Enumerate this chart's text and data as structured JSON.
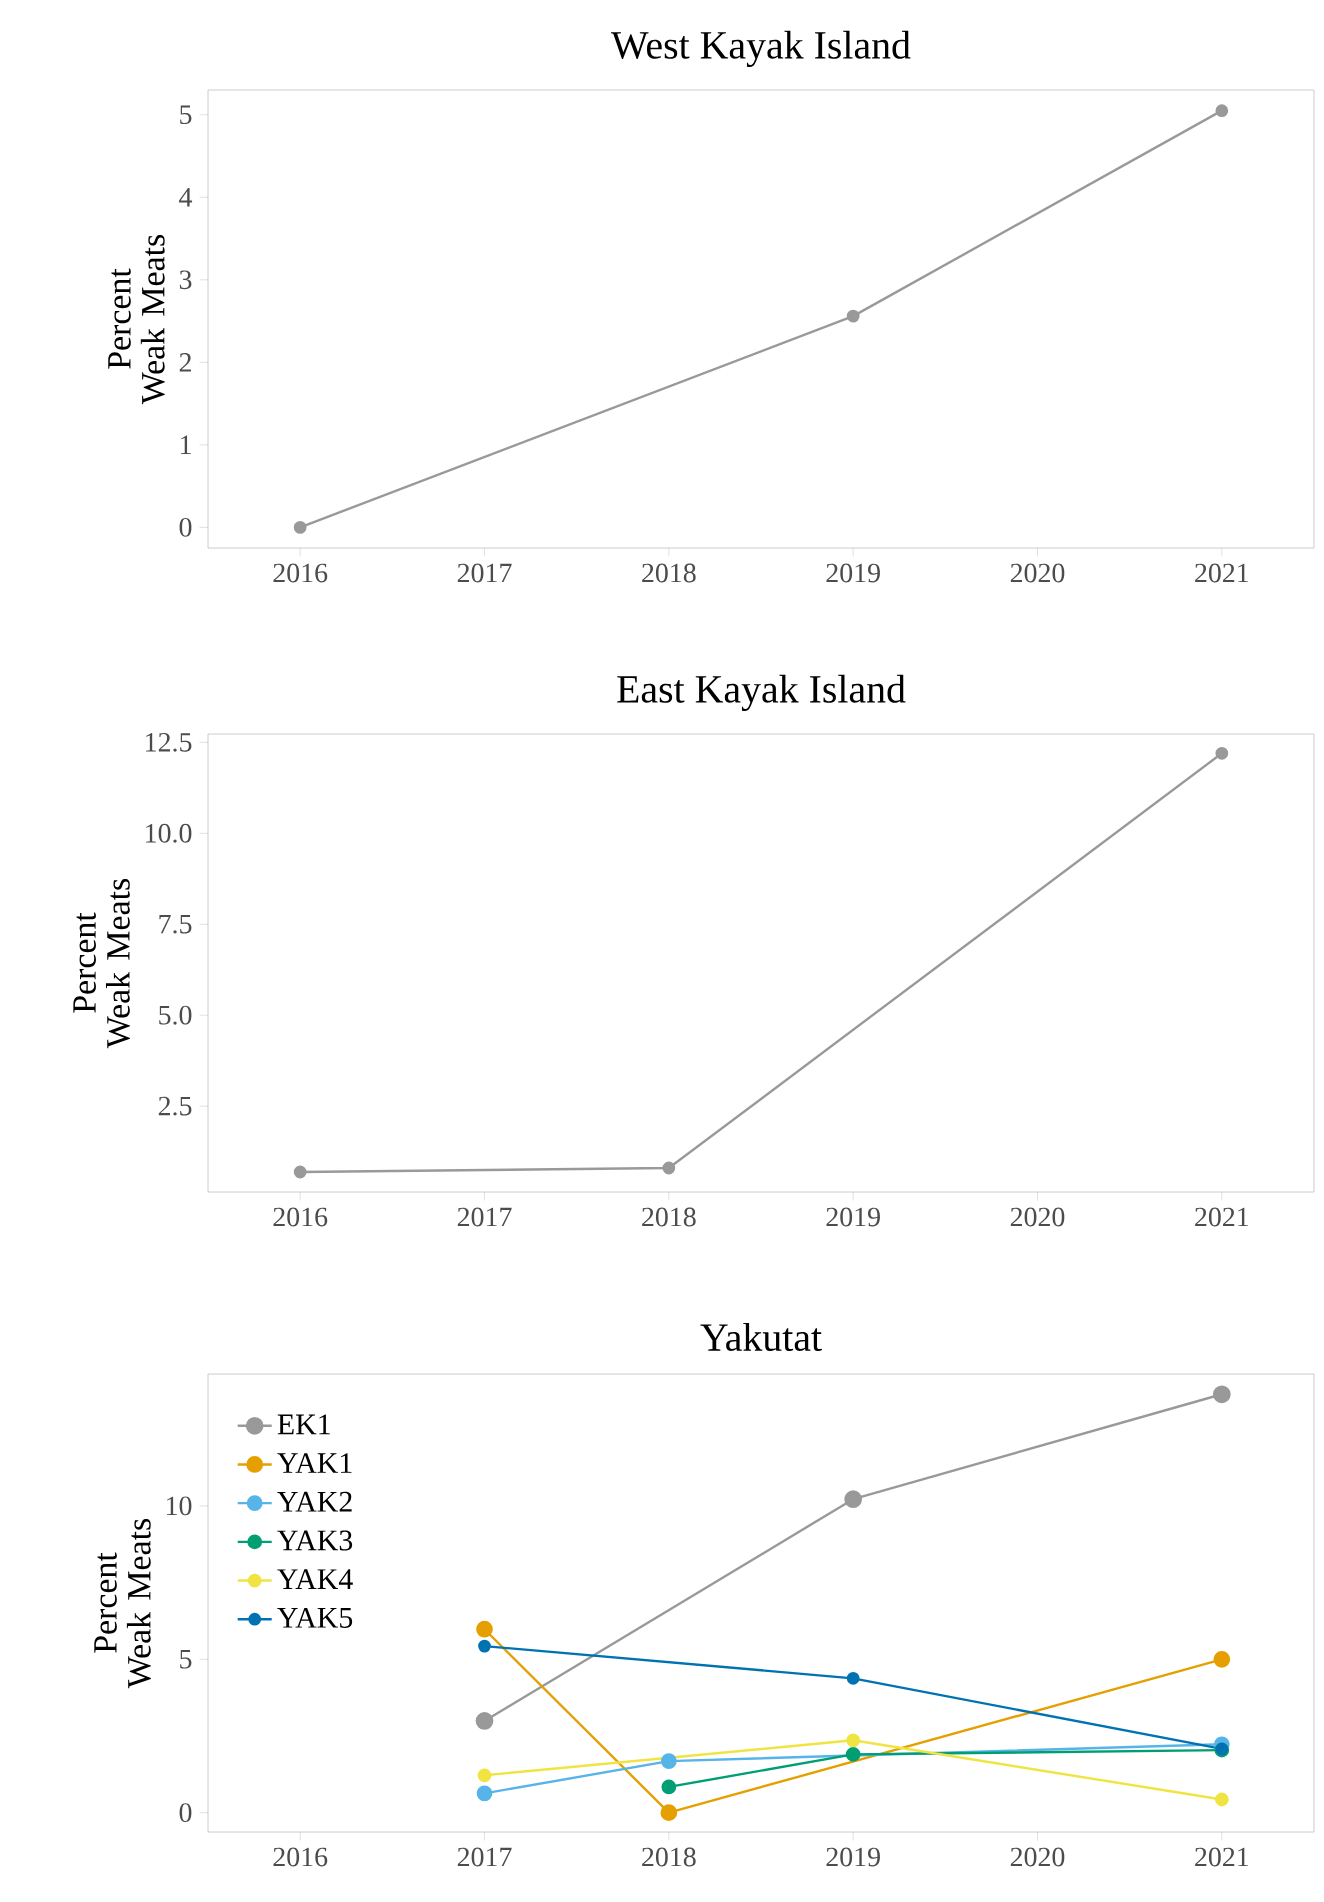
{
  "chart_data": [
    {
      "type": "line",
      "title": "West Kayak Island",
      "ylabel": "Percent Weak Meats",
      "xlim": [
        2015.5,
        2021.5
      ],
      "xticks": [
        2016,
        2017,
        2018,
        2019,
        2020,
        2021
      ],
      "ylim": [
        -0.25,
        5.3
      ],
      "yticks": [
        0,
        1,
        2,
        3,
        4,
        5
      ],
      "marker": "circle",
      "grid": false,
      "legend": false,
      "series": [
        {
          "color": "#999999",
          "x": [
            2016,
            2019,
            2021
          ],
          "values": [
            0,
            2.56,
            5.05
          ]
        }
      ]
    },
    {
      "type": "line",
      "title": "East Kayak Island",
      "ylabel": "Percent Weak Meats",
      "xlim": [
        2015.5,
        2021.5
      ],
      "xticks": [
        2016,
        2017,
        2018,
        2019,
        2020,
        2021
      ],
      "ylim": [
        0.14,
        12.73
      ],
      "yticks": [
        {
          "value": 2.5,
          "label": "2.5"
        },
        {
          "value": 5,
          "label": "5.0"
        },
        {
          "value": 7.5,
          "label": "7.5"
        },
        {
          "value": 10,
          "label": "10.0"
        },
        {
          "value": 12.5,
          "label": "12.5"
        }
      ],
      "marker": "circle",
      "grid": false,
      "legend": false,
      "series": [
        {
          "color": "#999999",
          "x": [
            2016,
            2018,
            2021
          ],
          "values": [
            0.69,
            0.8,
            12.2
          ]
        }
      ]
    },
    {
      "type": "line",
      "title": "Yakutat",
      "ylabel": "Percent Weak Meats",
      "xlim": [
        2015.5,
        2021.5
      ],
      "xticks": [
        2016,
        2017,
        2018,
        2019,
        2020,
        2021
      ],
      "ylim": [
        -0.63,
        14.3
      ],
      "yticks": [
        0,
        5,
        10
      ],
      "marker": "circle",
      "grid": false,
      "legend": "top left",
      "series": [
        {
          "name": "EK1",
          "color": "#999999",
          "x": [
            2017,
            2019,
            2021
          ],
          "values": [
            2.99,
            10.22,
            13.64
          ]
        },
        {
          "name": "YAK1",
          "color": "#E69F00",
          "x": [
            2017,
            2018,
            2021
          ],
          "values": [
            5.98,
            0,
            5.0
          ]
        },
        {
          "name": "YAK2",
          "color": "#56B4E9",
          "x": [
            2017,
            2018,
            2021
          ],
          "values": [
            0.63,
            1.68,
            2.23
          ]
        },
        {
          "name": "YAK3",
          "color": "#009E73",
          "x": [
            2018,
            2019,
            2021
          ],
          "values": [
            0.84,
            1.9,
            2.04
          ]
        },
        {
          "name": "YAK4",
          "color": "#F0E442",
          "x": [
            2017,
            2019,
            2021
          ],
          "values": [
            1.22,
            2.36,
            0.43
          ]
        },
        {
          "name": "YAK5",
          "color": "#0072B2",
          "x": [
            2017,
            2019,
            2021
          ],
          "values": [
            5.43,
            4.38,
            2.08
          ]
        }
      ]
    }
  ]
}
